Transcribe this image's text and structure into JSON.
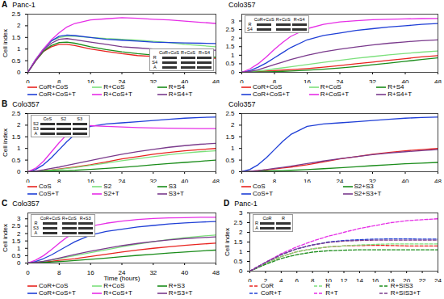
{
  "chart_data": [
    {
      "type": "line",
      "panel": "A",
      "title": "Panc-1",
      "y_label": "Cell index",
      "x": [
        0,
        2,
        4,
        6,
        8,
        10,
        12,
        16,
        20,
        24,
        28,
        32,
        36,
        40,
        44,
        48
      ],
      "xlim": [
        0,
        48
      ],
      "xticks": [
        0,
        8,
        16,
        24,
        32,
        40,
        48
      ],
      "ylim": [
        0,
        2.5
      ],
      "yticks": [
        0,
        0.5,
        1,
        1.5,
        2,
        2.5
      ],
      "inset": {
        "lanes": [
          "CoR+CoS",
          "R+CoS",
          "R+S4"
        ],
        "rows": [
          "R",
          "S4",
          "A"
        ]
      },
      "series": [
        {
          "name": "CoR+CoS",
          "color": "#e8231f",
          "values": [
            0,
            0.5,
            0.9,
            1.1,
            1.2,
            1.2,
            1.15,
            1.0,
            0.9,
            0.8,
            0.72,
            0.68,
            0.65,
            0.62,
            0.6,
            0.6
          ]
        },
        {
          "name": "R+CoS",
          "color": "#7ce07c",
          "values": [
            0,
            0.55,
            1.0,
            1.35,
            1.5,
            1.55,
            1.55,
            1.5,
            1.45,
            1.42,
            1.38,
            1.33,
            1.28,
            1.2,
            1.15,
            1.1
          ]
        },
        {
          "name": "R+S4",
          "color": "#1a8c1a",
          "values": [
            0,
            0.5,
            0.9,
            1.15,
            1.28,
            1.3,
            1.25,
            1.1,
            0.98,
            0.88,
            0.8,
            0.74,
            0.7,
            0.68,
            0.66,
            0.65
          ]
        },
        {
          "name": "CoR+CoS+T",
          "color": "#1f3fd6",
          "values": [
            0,
            0.55,
            1.0,
            1.35,
            1.55,
            1.6,
            1.58,
            1.5,
            1.42,
            1.38,
            1.34,
            1.3,
            1.28,
            1.26,
            1.25,
            1.24
          ]
        },
        {
          "name": "R+CoS+T",
          "color": "#e62ee6",
          "values": [
            0,
            0.55,
            1.0,
            1.4,
            1.7,
            1.95,
            2.1,
            2.25,
            2.3,
            2.35,
            2.32,
            2.28,
            2.25,
            2.2,
            2.15,
            2.1
          ]
        },
        {
          "name": "R+S4+T",
          "color": "#7a3a8c",
          "values": [
            0,
            0.5,
            0.95,
            1.25,
            1.42,
            1.45,
            1.4,
            1.3,
            1.2,
            1.1,
            1.05,
            1.0,
            0.98,
            0.96,
            0.95,
            0.95
          ]
        }
      ]
    },
    {
      "type": "line",
      "title": "Colo357",
      "x": [
        0,
        2,
        4,
        6,
        8,
        10,
        12,
        16,
        20,
        24,
        28,
        32,
        36,
        40,
        44,
        48
      ],
      "xlim": [
        0,
        48
      ],
      "xticks": [
        0,
        8,
        16,
        24,
        32,
        40,
        48
      ],
      "ylim": [
        0,
        3.4
      ],
      "yticks": [
        0,
        0.5,
        1,
        1.5,
        2,
        2.5,
        3
      ],
      "inset": {
        "lanes": [
          "CoR+CoS",
          "R+CoS",
          "R+S4"
        ],
        "rows": [
          "R",
          "S4"
        ]
      },
      "series": [
        {
          "name": "CoR+CoS",
          "color": "#e8231f",
          "values": [
            0,
            0.02,
            0.05,
            0.08,
            0.1,
            0.13,
            0.16,
            0.22,
            0.3,
            0.4,
            0.5,
            0.6,
            0.7,
            0.8,
            0.9,
            0.98
          ]
        },
        {
          "name": "R+CoS",
          "color": "#7ce07c",
          "values": [
            0,
            0.03,
            0.08,
            0.14,
            0.2,
            0.26,
            0.32,
            0.45,
            0.58,
            0.7,
            0.82,
            0.92,
            1.02,
            1.1,
            1.18,
            1.25
          ]
        },
        {
          "name": "R+S4",
          "color": "#1a8c1a",
          "values": [
            0,
            0.01,
            0.02,
            0.03,
            0.04,
            0.06,
            0.08,
            0.12,
            0.18,
            0.25,
            0.34,
            0.44,
            0.54,
            0.64,
            0.75,
            0.85
          ]
        },
        {
          "name": "CoR+CoS+T",
          "color": "#1f3fd6",
          "values": [
            0,
            0.1,
            0.3,
            0.55,
            0.85,
            1.15,
            1.45,
            1.9,
            2.15,
            2.3,
            2.45,
            2.55,
            2.65,
            2.72,
            2.8,
            2.85
          ]
        },
        {
          "name": "R+CoS+T",
          "color": "#e62ee6",
          "values": [
            0,
            0.2,
            0.5,
            0.9,
            1.35,
            1.75,
            2.1,
            2.55,
            2.8,
            2.95,
            3.02,
            3.08,
            3.1,
            3.12,
            3.14,
            3.15
          ]
        },
        {
          "name": "R+S4+T",
          "color": "#7a3a8c",
          "values": [
            0,
            0.05,
            0.15,
            0.3,
            0.45,
            0.6,
            0.75,
            1.0,
            1.2,
            1.35,
            1.48,
            1.6,
            1.7,
            1.78,
            1.85,
            1.9
          ]
        }
      ]
    },
    {
      "type": "line",
      "panel": "B",
      "title": "Colo357",
      "y_label": "Cell index",
      "x": [
        0,
        2,
        4,
        6,
        8,
        10,
        12,
        16,
        20,
        24,
        28,
        32,
        36,
        40,
        44,
        48
      ],
      "xlim": [
        0,
        48
      ],
      "xticks": [
        0,
        8,
        16,
        24,
        32,
        40,
        48
      ],
      "ylim": [
        0,
        2.5
      ],
      "yticks": [
        0,
        0.5,
        1,
        1.5,
        2,
        2.5
      ],
      "inset": {
        "lanes": [
          "CoS",
          "S2",
          "S3"
        ],
        "rows": [
          "S2",
          "S3",
          "A"
        ]
      },
      "series": [
        {
          "name": "CoS",
          "color": "#e8231f",
          "values": [
            0,
            0.02,
            0.05,
            0.08,
            0.12,
            0.16,
            0.2,
            0.3,
            0.42,
            0.55,
            0.65,
            0.75,
            0.83,
            0.9,
            0.95,
            1.0
          ]
        },
        {
          "name": "S2",
          "color": "#7ce07c",
          "values": [
            0,
            0.02,
            0.04,
            0.07,
            0.1,
            0.14,
            0.18,
            0.27,
            0.37,
            0.47,
            0.56,
            0.65,
            0.73,
            0.8,
            0.86,
            0.9
          ]
        },
        {
          "name": "S3",
          "color": "#1a8c1a",
          "values": [
            0,
            0.01,
            0.02,
            0.03,
            0.04,
            0.05,
            0.06,
            0.1,
            0.14,
            0.19,
            0.24,
            0.3,
            0.35,
            0.4,
            0.45,
            0.5
          ]
        },
        {
          "name": "CoS+T",
          "color": "#1f3fd6",
          "values": [
            0,
            0.1,
            0.3,
            0.6,
            0.95,
            1.3,
            1.6,
            1.95,
            2.05,
            2.1,
            2.15,
            2.2,
            2.25,
            2.3,
            2.33,
            2.35
          ]
        },
        {
          "name": "S2+T",
          "color": "#e62ee6",
          "values": [
            0,
            0.15,
            0.45,
            0.85,
            1.25,
            1.6,
            1.85,
            1.98,
            1.95,
            1.92,
            1.9,
            1.88,
            1.87,
            1.86,
            1.85,
            1.85
          ]
        },
        {
          "name": "S3+T",
          "color": "#7a3a8c",
          "values": [
            0,
            0.03,
            0.08,
            0.14,
            0.2,
            0.27,
            0.34,
            0.48,
            0.62,
            0.75,
            0.86,
            0.96,
            1.05,
            1.12,
            1.18,
            1.22
          ]
        }
      ]
    },
    {
      "type": "line",
      "title": "Colo357",
      "x": [
        0,
        2,
        4,
        6,
        8,
        10,
        12,
        16,
        20,
        24,
        28,
        32,
        36,
        40,
        44,
        48
      ],
      "xlim": [
        0,
        48
      ],
      "xticks": [
        0,
        8,
        16,
        24,
        32,
        40,
        48
      ],
      "ylim": [
        0,
        2.5
      ],
      "yticks": [
        0,
        0.5,
        1,
        1.5,
        2,
        2.5
      ],
      "series": [
        {
          "name": "CoS",
          "color": "#e8231f",
          "values": [
            0,
            0.02,
            0.05,
            0.08,
            0.12,
            0.16,
            0.2,
            0.3,
            0.42,
            0.55,
            0.65,
            0.75,
            0.83,
            0.9,
            0.95,
            1.0
          ]
        },
        {
          "name": "S2+S3",
          "color": "#1a8c1a",
          "values": [
            0,
            0.01,
            0.02,
            0.03,
            0.04,
            0.05,
            0.06,
            0.09,
            0.13,
            0.17,
            0.21,
            0.26,
            0.3,
            0.34,
            0.37,
            0.4
          ]
        },
        {
          "name": "CoS+T",
          "color": "#1f3fd6",
          "values": [
            0,
            0.1,
            0.3,
            0.6,
            0.95,
            1.3,
            1.6,
            1.95,
            2.05,
            2.1,
            2.15,
            2.2,
            2.25,
            2.3,
            2.33,
            2.35
          ]
        },
        {
          "name": "S2+S3+T",
          "color": "#7a3a8c",
          "values": [
            0,
            0.02,
            0.05,
            0.09,
            0.14,
            0.19,
            0.24,
            0.35,
            0.46,
            0.56,
            0.65,
            0.73,
            0.8,
            0.86,
            0.91,
            0.95
          ]
        }
      ]
    },
    {
      "type": "line",
      "panel": "C",
      "title": "Colo357",
      "y_label": "Cell index",
      "x_label": "Time (hours)",
      "x": [
        0,
        2,
        4,
        6,
        8,
        10,
        12,
        16,
        20,
        24,
        28,
        32,
        36,
        40,
        44,
        48
      ],
      "xlim": [
        0,
        48
      ],
      "xticks": [
        0,
        8,
        16,
        24,
        32,
        40,
        48
      ],
      "ylim": [
        0,
        3.4
      ],
      "yticks": [
        0,
        0.5,
        1,
        1.5,
        2,
        2.5,
        3
      ],
      "inset": {
        "lanes": [
          "CoR+CoS",
          "R+CoS",
          "R+S3"
        ],
        "rows": [
          "R",
          "S3",
          "A"
        ]
      },
      "series": [
        {
          "name": "CoR+CoS",
          "color": "#e8231f",
          "values": [
            0,
            0.03,
            0.07,
            0.12,
            0.18,
            0.24,
            0.3,
            0.45,
            0.6,
            0.75,
            0.88,
            1.0,
            1.1,
            1.2,
            1.28,
            1.35
          ]
        },
        {
          "name": "R+CoS",
          "color": "#7ce07c",
          "values": [
            0,
            0.05,
            0.12,
            0.2,
            0.3,
            0.4,
            0.5,
            0.7,
            0.9,
            1.1,
            1.28,
            1.45,
            1.6,
            1.72,
            1.82,
            1.9
          ]
        },
        {
          "name": "R+S3",
          "color": "#1a8c1a",
          "values": [
            0,
            0.02,
            0.04,
            0.07,
            0.1,
            0.13,
            0.17,
            0.25,
            0.34,
            0.43,
            0.52,
            0.6,
            0.68,
            0.75,
            0.82,
            0.88
          ]
        },
        {
          "name": "CoR+CoS+T",
          "color": "#1f3fd6",
          "values": [
            0,
            0.1,
            0.3,
            0.55,
            0.85,
            1.15,
            1.45,
            1.9,
            2.15,
            2.3,
            2.45,
            2.55,
            2.65,
            2.72,
            2.78,
            2.82
          ]
        },
        {
          "name": "R+CoS+T",
          "color": "#e62ee6",
          "values": [
            0,
            0.2,
            0.5,
            0.9,
            1.35,
            1.75,
            2.1,
            2.5,
            2.7,
            2.85,
            2.95,
            3.02,
            3.06,
            3.08,
            3.1,
            3.1
          ]
        },
        {
          "name": "R+S3+T",
          "color": "#7a3a8c",
          "values": [
            0,
            0.05,
            0.12,
            0.22,
            0.34,
            0.46,
            0.58,
            0.8,
            1.0,
            1.18,
            1.33,
            1.46,
            1.57,
            1.66,
            1.72,
            1.78
          ]
        }
      ]
    },
    {
      "type": "line",
      "panel": "D",
      "title": "Panc-1",
      "y_label": "Cell index",
      "x": [
        0,
        2,
        4,
        6,
        8,
        10,
        12,
        14,
        16,
        18,
        20,
        22,
        24
      ],
      "xlim": [
        0,
        24
      ],
      "xticks": [
        0,
        2,
        4,
        6,
        8,
        10,
        12,
        14,
        16,
        18,
        20,
        22,
        24
      ],
      "ylim": [
        0,
        3
      ],
      "yticks": [
        0,
        0.5,
        1,
        1.5,
        2,
        2.5,
        3
      ],
      "inset": {
        "lanes": [
          "CoR",
          "R"
        ],
        "rows": [
          "R",
          "A"
        ]
      },
      "series": [
        {
          "name": "CoR",
          "color": "#e8231f",
          "line_style": "dashed",
          "values": [
            0,
            0.4,
            0.75,
            1.0,
            1.15,
            1.25,
            1.3,
            1.32,
            1.33,
            1.32,
            1.3,
            1.3,
            1.3
          ]
        },
        {
          "name": "R",
          "color": "#7ce07c",
          "line_style": "dashed",
          "values": [
            0,
            0.4,
            0.75,
            1.0,
            1.15,
            1.25,
            1.3,
            1.35,
            1.38,
            1.4,
            1.4,
            1.4,
            1.4
          ]
        },
        {
          "name": "R+SIS3",
          "color": "#1a8c1a",
          "line_style": "dashed",
          "values": [
            0,
            0.35,
            0.65,
            0.85,
            0.98,
            1.05,
            1.08,
            1.1,
            1.1,
            1.1,
            1.1,
            1.1,
            1.1
          ]
        },
        {
          "name": "CoR+T",
          "color": "#1f3fd6",
          "line_style": "dashed",
          "values": [
            0,
            0.45,
            0.85,
            1.15,
            1.35,
            1.5,
            1.58,
            1.62,
            1.65,
            1.66,
            1.66,
            1.65,
            1.65
          ]
        },
        {
          "name": "R+T",
          "color": "#e62ee6",
          "line_style": "dashed",
          "values": [
            0,
            0.45,
            0.9,
            1.25,
            1.55,
            1.8,
            2.0,
            2.2,
            2.35,
            2.5,
            2.6,
            2.65,
            2.7
          ]
        },
        {
          "name": "R+SIS3+T",
          "color": "#7a3a8c",
          "line_style": "dashed",
          "values": [
            0,
            0.45,
            0.85,
            1.15,
            1.35,
            1.48,
            1.55,
            1.58,
            1.6,
            1.6,
            1.6,
            1.6,
            1.6
          ]
        }
      ]
    }
  ]
}
